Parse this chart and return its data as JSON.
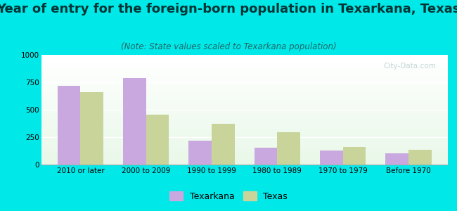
{
  "title": "Year of entry for the foreign-born population in Texarkana, Texas",
  "subtitle": "(Note: State values scaled to Texarkana population)",
  "categories": [
    "2010 or later",
    "2000 to 2009",
    "1990 to 1999",
    "1980 to 1989",
    "1970 to 1979",
    "Before 1970"
  ],
  "texarkana_values": [
    720,
    790,
    215,
    155,
    130,
    105
  ],
  "texas_values": [
    660,
    455,
    370,
    295,
    160,
    135
  ],
  "texarkana_color": "#c9a8e0",
  "texas_color": "#c8d49a",
  "ylim": [
    0,
    1000
  ],
  "yticks": [
    0,
    250,
    500,
    750,
    1000
  ],
  "background_color": "#00e8e8",
  "bar_width": 0.35,
  "title_fontsize": 13,
  "subtitle_fontsize": 8.5,
  "tick_fontsize": 7.5,
  "legend_fontsize": 9
}
